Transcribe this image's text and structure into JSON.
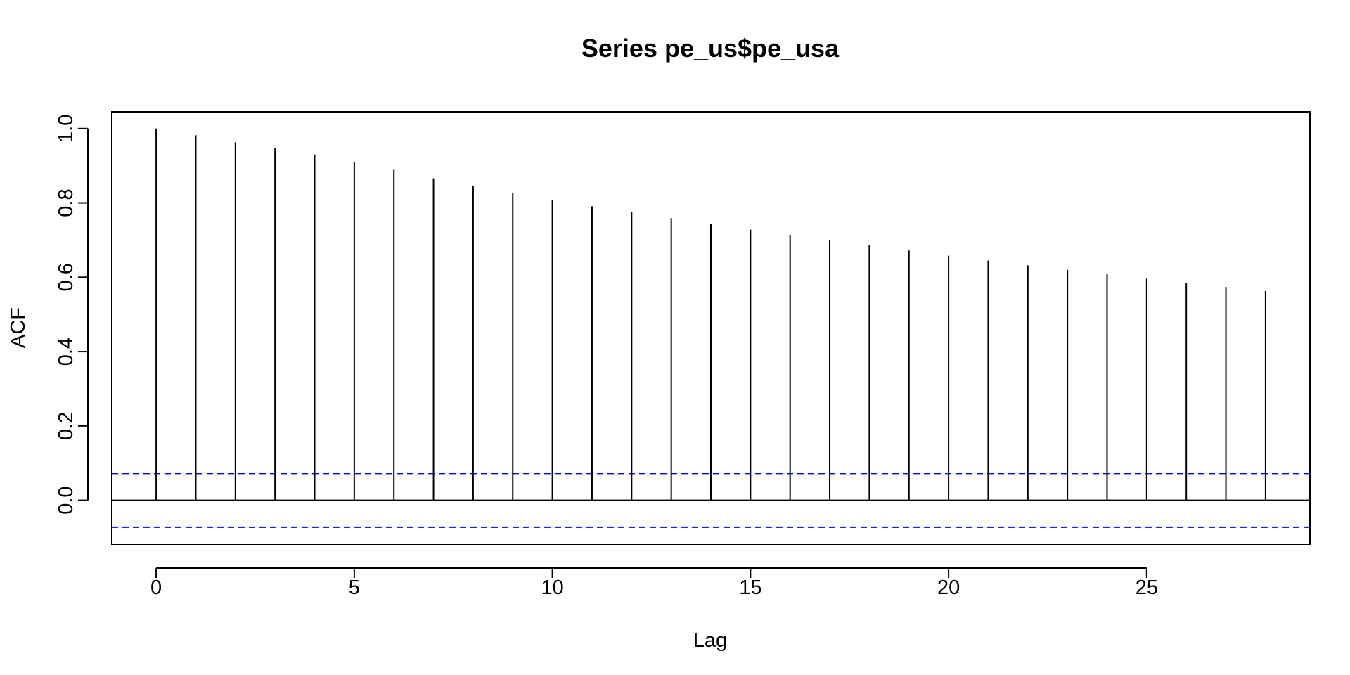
{
  "chart_data": {
    "type": "bar",
    "title": "Series  pe_us$pe_usa",
    "xlabel": "Lag",
    "ylabel": "ACF",
    "x": [
      0,
      1,
      2,
      3,
      4,
      5,
      6,
      7,
      8,
      9,
      10,
      11,
      12,
      13,
      14,
      15,
      16,
      17,
      18,
      19,
      20,
      21,
      22,
      23,
      24,
      25,
      26,
      27,
      28
    ],
    "values": [
      1.0,
      0.982,
      0.963,
      0.948,
      0.93,
      0.91,
      0.889,
      0.866,
      0.845,
      0.826,
      0.808,
      0.791,
      0.775,
      0.759,
      0.744,
      0.728,
      0.714,
      0.699,
      0.686,
      0.672,
      0.658,
      0.645,
      0.632,
      0.62,
      0.608,
      0.596,
      0.585,
      0.574,
      0.563
    ],
    "xlim": [
      -1.12,
      29.12
    ],
    "ylim": [
      -0.118,
      1.045
    ],
    "xticks": [
      0,
      5,
      10,
      15,
      20,
      25
    ],
    "xtick_labels": [
      "0",
      "5",
      "10",
      "15",
      "20",
      "25"
    ],
    "yticks": [
      0.0,
      0.2,
      0.4,
      0.6,
      0.8,
      1.0
    ],
    "ytick_labels": [
      "0.0",
      "0.2",
      "0.4",
      "0.6",
      "0.8",
      "1.0"
    ],
    "confidence_bound": 0.0723,
    "confidence_color": "#0000ff",
    "bar_color": "#000000",
    "grid": false,
    "legend": "none"
  }
}
